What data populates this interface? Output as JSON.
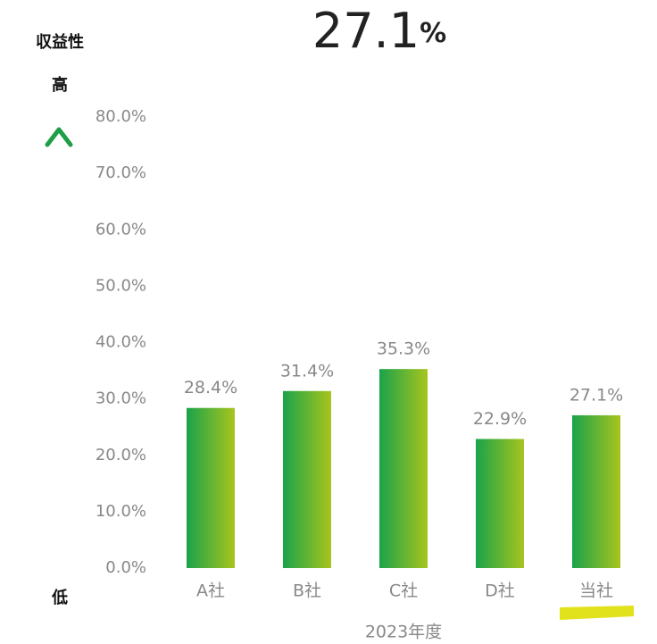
{
  "chart_data": {
    "type": "bar",
    "headline": {
      "value": "27.1",
      "unit": "%"
    },
    "y_label_top": "収益性",
    "y_high": "高",
    "y_low": "低",
    "x_label": "2023年度",
    "categories": [
      "A社",
      "B社",
      "C社",
      "D社",
      "当社"
    ],
    "values": [
      28.4,
      31.4,
      35.3,
      22.9,
      27.1
    ],
    "value_labels": [
      "28.4%",
      "31.4%",
      "35.3%",
      "22.9%",
      "27.1%"
    ],
    "color": [
      "#1aa34a",
      "#a8c41e"
    ],
    "highlight_color": "#e2e21c",
    "highlight_category": "当社",
    "ylim": [
      0,
      80
    ],
    "yticks": [
      {
        "value": 0,
        "label": "0.0%"
      },
      {
        "value": 10,
        "label": "10.0%"
      },
      {
        "value": 20,
        "label": "20.0%"
      },
      {
        "value": 30,
        "label": "30.0%"
      },
      {
        "value": 40,
        "label": "40.0%"
      },
      {
        "value": 50,
        "label": "50.0%"
      },
      {
        "value": 60,
        "label": "60.0%"
      },
      {
        "value": 70,
        "label": "70.0%"
      },
      {
        "value": 80,
        "label": "80.0%"
      }
    ],
    "grid": false
  }
}
